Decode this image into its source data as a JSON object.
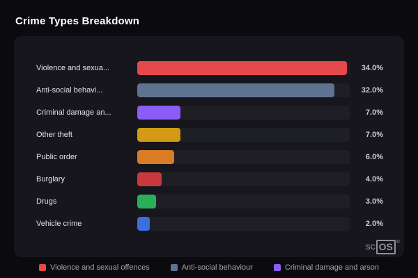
{
  "page": {
    "title": "Crime Types Breakdown"
  },
  "colors": {
    "background": "#0b0b0f",
    "card": "#16161c",
    "track": "#1e1e25"
  },
  "logo": {
    "prefix": "sc",
    "boxed": "OS",
    "registered": "®"
  },
  "chart_data": {
    "type": "bar",
    "orientation": "horizontal",
    "title": "Crime Types Breakdown",
    "categories": [
      "Violence and sexual offences",
      "Anti-social behaviour",
      "Criminal damage and arson",
      "Other theft",
      "Public order",
      "Burglary",
      "Drugs",
      "Vehicle crime"
    ],
    "labels_displayed": [
      "Violence and sexua...",
      "Anti-social behavi...",
      "Criminal damage an...",
      "Other theft",
      "Public order",
      "Burglary",
      "Drugs",
      "Vehicle crime"
    ],
    "values": [
      34.0,
      32.0,
      7.0,
      7.0,
      6.0,
      4.0,
      3.0,
      2.0
    ],
    "value_labels": [
      "34.0%",
      "32.0%",
      "7.0%",
      "7.0%",
      "6.0%",
      "4.0%",
      "3.0%",
      "2.0%"
    ],
    "bar_colors": [
      "#e5484d",
      "#5d7390",
      "#8b5cf6",
      "#d39a14",
      "#d97c26",
      "#c7383f",
      "#2aae58",
      "#3a6fe0"
    ],
    "xlim": [
      0,
      34.5
    ],
    "grid": false,
    "legend_position": "bottom",
    "legend": [
      {
        "label": "Violence and sexual offences",
        "color": "#e5484d"
      },
      {
        "label": "Anti-social behaviour",
        "color": "#5d7390"
      },
      {
        "label": "Criminal damage and arson",
        "color": "#8b5cf6"
      }
    ]
  }
}
